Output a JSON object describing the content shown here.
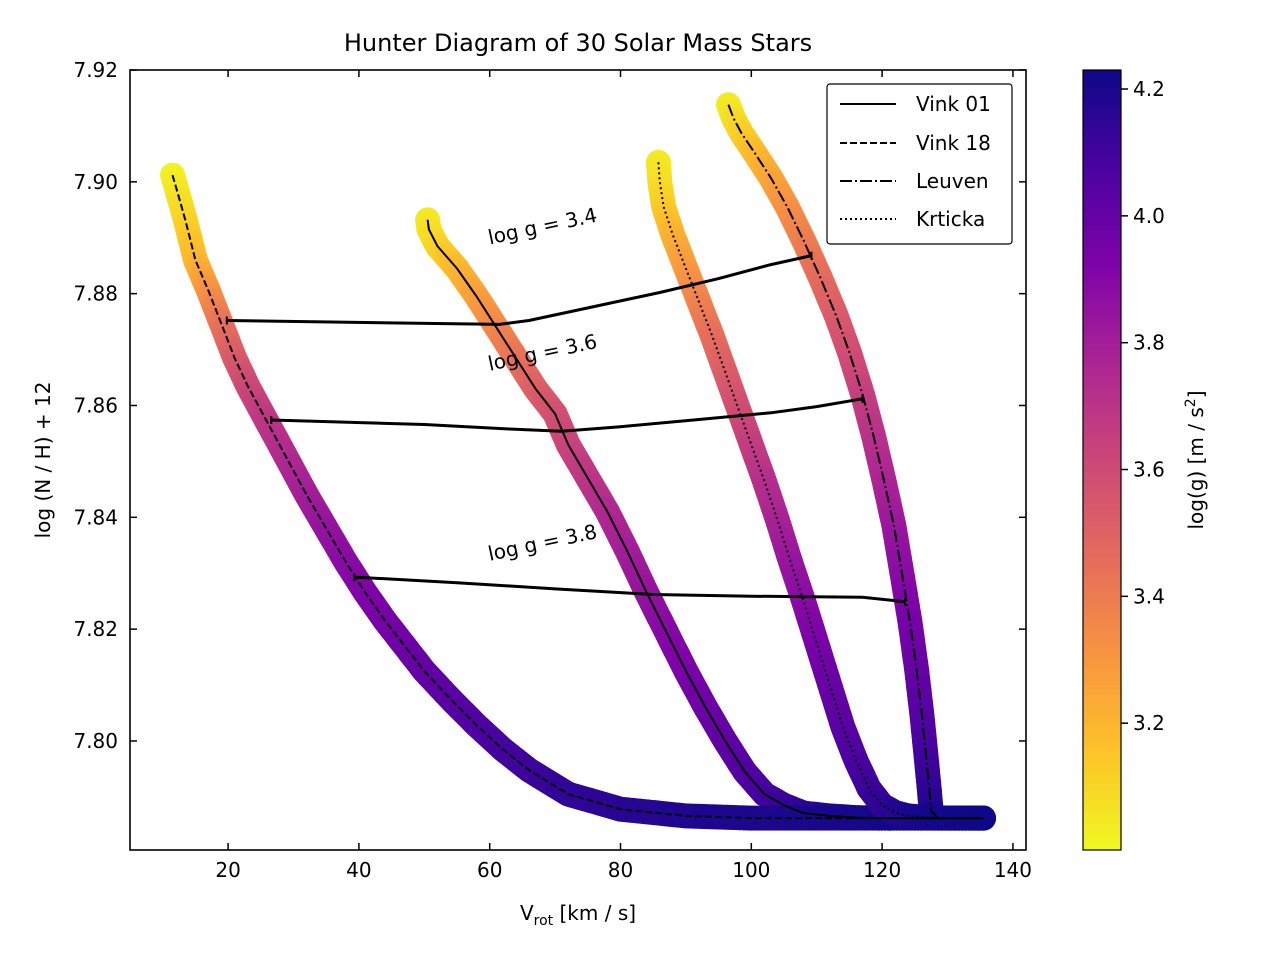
{
  "chart_data": {
    "type": "scatter",
    "title": "Hunter Diagram of 30 Solar Mass Stars",
    "xlabel_main": "V",
    "xlabel_sub": "rot",
    "xlabel_tail": " [km / s]",
    "ylabel": "log (N / H) + 12",
    "xlim": [
      5,
      142
    ],
    "ylim": [
      7.7805,
      7.92
    ],
    "xticks": [
      20,
      40,
      60,
      80,
      100,
      120,
      140
    ],
    "xtick_labels": [
      "20",
      "40",
      "60",
      "80",
      "100",
      "120",
      "140"
    ],
    "yticks": [
      7.8,
      7.82,
      7.84,
      7.86,
      7.88,
      7.9,
      7.92
    ],
    "ytick_labels": [
      "7.80",
      "7.82",
      "7.84",
      "7.86",
      "7.88",
      "7.90",
      "7.92"
    ],
    "colorbar": {
      "label_main": "log(g) [m / s",
      "label_sup": "2",
      "label_tail": "]",
      "min": 3.0,
      "max": 4.23,
      "ticks": [
        3.2,
        3.4,
        3.6,
        3.8,
        4.0,
        4.2
      ],
      "tick_labels": [
        "3.2",
        "3.4",
        "3.6",
        "3.8",
        "4.0",
        "4.2"
      ],
      "colormap": "plasma_r"
    },
    "legend": {
      "placement": "top-right",
      "entries": [
        {
          "label": "Vink 01",
          "style": "solid"
        },
        {
          "label": "Vink 18",
          "style": "dashed"
        },
        {
          "label": "Leuven",
          "style": "dashdot"
        },
        {
          "label": "Krticka",
          "style": "dotted"
        }
      ]
    },
    "series": [
      {
        "name": "Vink 01",
        "style": "solid",
        "x": [
          50.5,
          50.7,
          52,
          55,
          58,
          61,
          64,
          67,
          70,
          72,
          75,
          78,
          81,
          84,
          87,
          90,
          93,
          96,
          99,
          102,
          105,
          108,
          112,
          116,
          120,
          125,
          130,
          134,
          135.5
        ],
        "y": [
          7.8932,
          7.8915,
          7.8885,
          7.8845,
          7.8795,
          7.874,
          7.8685,
          7.863,
          7.8585,
          7.853,
          7.847,
          7.841,
          7.834,
          7.8265,
          7.8195,
          7.8125,
          7.806,
          7.8,
          7.7945,
          7.7905,
          7.7885,
          7.7871,
          7.7866,
          7.7863,
          7.7862,
          7.7862,
          7.7862,
          7.7862,
          7.7862
        ],
        "logg": [
          3.04,
          3.06,
          3.1,
          3.18,
          3.26,
          3.34,
          3.42,
          3.5,
          3.57,
          3.62,
          3.68,
          3.74,
          3.79,
          3.84,
          3.89,
          3.93,
          3.97,
          4.01,
          4.05,
          4.09,
          4.12,
          4.15,
          4.17,
          4.19,
          4.2,
          4.21,
          4.22,
          4.22,
          4.23
        ]
      },
      {
        "name": "Vink 18",
        "style": "dashed",
        "x": [
          11.5,
          12.3,
          13.5,
          15,
          17,
          19,
          21,
          23,
          26,
          29,
          32,
          35,
          38,
          41,
          44,
          47,
          50,
          54,
          58,
          62,
          66,
          72,
          80,
          90,
          100,
          110,
          120,
          130,
          135.5
        ],
        "y": [
          7.9012,
          7.898,
          7.893,
          7.886,
          7.8805,
          7.8745,
          7.8685,
          7.8635,
          7.857,
          7.8505,
          7.844,
          7.838,
          7.832,
          7.8265,
          7.8215,
          7.817,
          7.8125,
          7.8075,
          7.8028,
          7.7985,
          7.7948,
          7.7905,
          7.7878,
          7.7866,
          7.7862,
          7.7862,
          7.7862,
          7.7862,
          7.7862
        ],
        "logg": [
          3.02,
          3.05,
          3.1,
          3.18,
          3.3,
          3.42,
          3.52,
          3.6,
          3.68,
          3.74,
          3.79,
          3.84,
          3.88,
          3.91,
          3.94,
          3.97,
          4.0,
          4.03,
          4.06,
          4.09,
          4.11,
          4.14,
          4.16,
          4.18,
          4.19,
          4.2,
          4.21,
          4.22,
          4.23
        ]
      },
      {
        "name": "Leuven",
        "style": "dashdot",
        "x": [
          96.5,
          97.3,
          98.5,
          100.5,
          103,
          105.5,
          108,
          110.5,
          113,
          115,
          117,
          118.7,
          120.3,
          121.8,
          123.1,
          124.3,
          125.3,
          126.1,
          126.7,
          127.2,
          127.5,
          128.5,
          131,
          134,
          135.5
        ],
        "y": [
          7.9138,
          7.9113,
          7.9087,
          7.9052,
          7.9007,
          7.8955,
          7.8895,
          7.883,
          7.876,
          7.8695,
          7.862,
          7.8545,
          7.8465,
          7.8385,
          7.8295,
          7.821,
          7.8125,
          7.8045,
          7.7975,
          7.7915,
          7.7875,
          7.7862,
          7.7862,
          7.7862,
          7.7862
        ],
        "logg": [
          3.04,
          3.07,
          3.11,
          3.17,
          3.24,
          3.31,
          3.38,
          3.45,
          3.52,
          3.58,
          3.64,
          3.7,
          3.76,
          3.82,
          3.88,
          3.94,
          3.99,
          4.04,
          4.09,
          4.14,
          4.18,
          4.2,
          4.21,
          4.22,
          4.23
        ]
      },
      {
        "name": "Krticka",
        "style": "dotted",
        "x": [
          85.8,
          86,
          86.6,
          88,
          90,
          92,
          94,
          96,
          98,
          100,
          102,
          104,
          106,
          108,
          110,
          112,
          114,
          116,
          118,
          120,
          122,
          124,
          127,
          131,
          135.5
        ],
        "y": [
          7.9035,
          7.9,
          7.8955,
          7.8905,
          7.8845,
          7.8785,
          7.8725,
          7.866,
          7.8595,
          7.853,
          7.8465,
          7.8395,
          7.832,
          7.825,
          7.8175,
          7.81,
          7.8025,
          7.7965,
          7.7915,
          7.7885,
          7.7872,
          7.7866,
          7.7863,
          7.7862,
          7.7862
        ],
        "logg": [
          3.04,
          3.07,
          3.12,
          3.2,
          3.28,
          3.36,
          3.44,
          3.51,
          3.58,
          3.65,
          3.71,
          3.77,
          3.83,
          3.88,
          3.93,
          3.98,
          4.03,
          4.07,
          4.11,
          4.14,
          4.17,
          4.19,
          4.21,
          4.22,
          4.23
        ]
      }
    ],
    "isolines": [
      {
        "label": "log g = 3.4",
        "label_at": [
          60,
          7.8888
        ],
        "x": [
          19.8,
          61.5,
          66,
          76,
          86,
          95,
          103,
          109.2
        ],
        "y": [
          7.8752,
          7.8745,
          7.8752,
          7.8777,
          7.8802,
          7.8827,
          7.8852,
          7.8868
        ]
      },
      {
        "label": "log g = 3.6",
        "label_at": [
          60,
          7.8662
        ],
        "x": [
          26.6,
          50,
          63,
          71,
          80,
          92,
          103,
          110,
          117
        ],
        "y": [
          7.8574,
          7.8566,
          7.8558,
          7.8554,
          7.8562,
          7.8575,
          7.8587,
          7.8598,
          7.8612
        ]
      },
      {
        "label": "log g = 3.8",
        "label_at": [
          60,
          7.8322
        ],
        "x": [
          39.3,
          55,
          70,
          85,
          100,
          117,
          123.5
        ],
        "y": [
          7.8293,
          7.8283,
          7.8272,
          7.8262,
          7.8259,
          7.8257,
          7.8249
        ]
      }
    ]
  }
}
